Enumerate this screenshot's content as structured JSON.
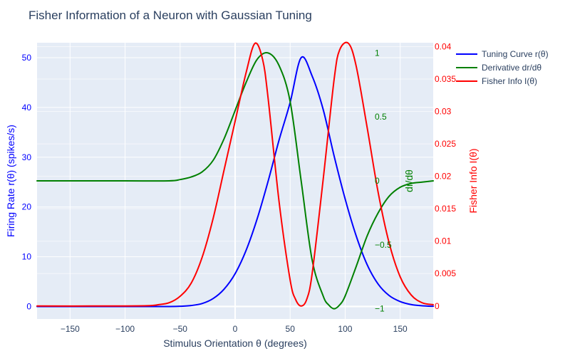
{
  "chart_data": {
    "type": "line",
    "title": "Fisher Information of a Neuron with Gaussian Tuning",
    "xlabel": "Stimulus Orientation θ (degrees)",
    "ylabel": "Firing Rate r(θ) (spikes/s)",
    "y2label": "Fisher Info I(θ)",
    "y3label": "dr/dθ",
    "xlim": [
      -180,
      180
    ],
    "ylim": [
      -2.5,
      53
    ],
    "y2lim": [
      -0.002,
      0.0406
    ],
    "y3lim": [
      -1.08,
      1.08
    ],
    "xticks": [
      -150,
      -100,
      -50,
      0,
      50,
      100,
      150
    ],
    "yticks": [
      0,
      10,
      20,
      30,
      40,
      50
    ],
    "y2ticks": [
      0,
      0.005,
      0.01,
      0.015,
      0.02,
      0.025,
      0.03,
      0.035,
      0.04
    ],
    "y2ticklabels": [
      "0",
      "0.005",
      "0.01",
      "0.015",
      "0.02",
      "0.025",
      "0.03",
      "0.035",
      "0.04"
    ],
    "y3ticks": [
      -1,
      -0.5,
      0,
      0.5,
      1
    ],
    "y3ticklabels": [
      "−1",
      "−0.5",
      "0",
      "0.5",
      "1"
    ],
    "grid": true,
    "legend_position": "top-right",
    "series": [
      {
        "name": "Tuning Curve r(θ)",
        "axis": "y",
        "color": "#0000ff",
        "x": [
          -180,
          -150,
          -120,
          -100,
          -80,
          -60,
          -50,
          -40,
          -30,
          -20,
          -10,
          0,
          10,
          20,
          30,
          40,
          50,
          60,
          70,
          80,
          90,
          100,
          110,
          120,
          130,
          140,
          150,
          160,
          170,
          180
        ],
        "values": [
          0,
          0,
          0,
          0,
          0,
          0,
          0.05,
          0.2,
          0.6,
          1.6,
          3.5,
          6.6,
          11.3,
          17.6,
          25.2,
          33.5,
          41,
          50,
          46.3,
          39.6,
          30.2,
          21.6,
          14.2,
          8.4,
          4.5,
          2.2,
          1.0,
          0.4,
          0.15,
          0.05
        ]
      },
      {
        "name": "Derivative dr/dθ",
        "axis": "y3",
        "color": "#008000",
        "x": [
          -180,
          -150,
          -100,
          -60,
          -50,
          -40,
          -30,
          -20,
          -10,
          0,
          10,
          20,
          30,
          40,
          50,
          60,
          70,
          80,
          85,
          90,
          95,
          100,
          110,
          120,
          130,
          140,
          150,
          160,
          170,
          180
        ],
        "values": [
          0,
          0,
          0,
          0,
          0.01,
          0.03,
          0.07,
          0.16,
          0.33,
          0.55,
          0.77,
          0.95,
          1.0,
          0.9,
          0.62,
          0,
          -0.62,
          -0.9,
          -0.97,
          -1.0,
          -0.97,
          -0.9,
          -0.67,
          -0.43,
          -0.25,
          -0.12,
          -0.05,
          -0.02,
          -0.01,
          0
        ]
      },
      {
        "name": "Fisher Info I(θ)",
        "axis": "y2",
        "color": "#ff0000",
        "x": [
          -180,
          -120,
          -80,
          -70,
          -60,
          -50,
          -40,
          -30,
          -20,
          -10,
          0,
          10,
          18,
          25,
          30,
          40,
          50,
          55,
          60,
          65,
          70,
          80,
          90,
          95,
          103,
          110,
          120,
          130,
          140,
          150,
          160,
          170,
          180
        ],
        "values": [
          0,
          0,
          5e-05,
          0.0002,
          0.0005,
          0.0015,
          0.0035,
          0.0075,
          0.0135,
          0.021,
          0.0285,
          0.036,
          0.0405,
          0.038,
          0.032,
          0.016,
          0.004,
          0.001,
          0,
          0.001,
          0.005,
          0.0195,
          0.035,
          0.0395,
          0.0405,
          0.037,
          0.0275,
          0.0175,
          0.0097,
          0.0045,
          0.0017,
          0.0005,
          0.0002
        ]
      }
    ]
  }
}
